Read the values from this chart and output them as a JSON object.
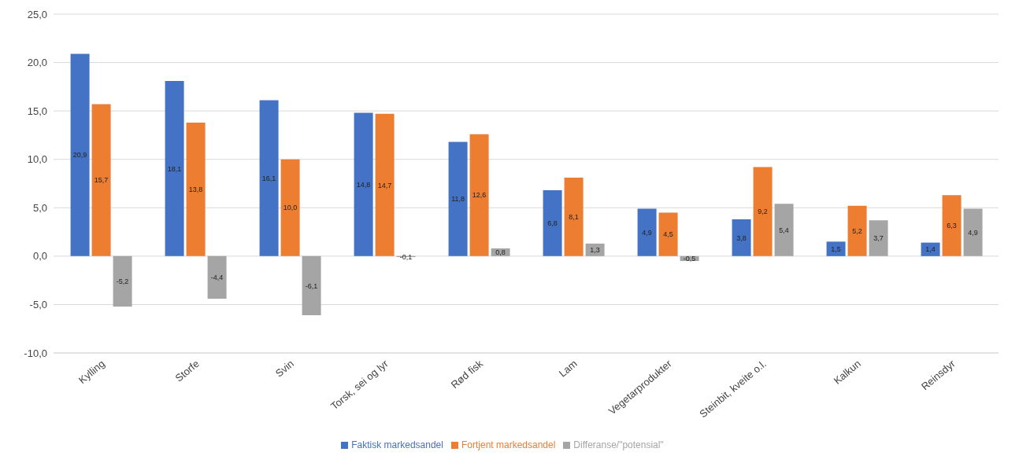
{
  "chart_data": {
    "type": "bar",
    "categories": [
      "Kylling",
      "Storfe",
      "Svin",
      "Torsk, sei og lyr",
      "Rød fisk",
      "Lam",
      "Vegetarprodukter",
      "Steinbit, kveite o.l.",
      "Kalkun",
      "Reinsdyr"
    ],
    "series": [
      {
        "name": "Faktisk markedsandel",
        "color": "#4472c4",
        "values": [
          20.9,
          18.1,
          16.1,
          14.8,
          11.8,
          6.8,
          4.9,
          3.8,
          1.5,
          1.4
        ],
        "value_labels": [
          "20,9",
          "18,1",
          "16,1",
          "14,8",
          "11,8",
          "6,8",
          "4,9",
          "3,8",
          "1,5",
          "1,4"
        ]
      },
      {
        "name": "Fortjent markedsandel",
        "color": "#ed7d31",
        "values": [
          15.7,
          13.8,
          10.0,
          14.7,
          12.6,
          8.1,
          4.5,
          9.2,
          5.2,
          6.3
        ],
        "value_labels": [
          "15,7",
          "13,8",
          "10,0",
          "14,7",
          "12,6",
          "8,1",
          "4,5",
          "9,2",
          "5,2",
          "6,3"
        ]
      },
      {
        "name": "Differanse/\"potensial\"",
        "color": "#a5a5a5",
        "values": [
          -5.2,
          -4.4,
          -6.1,
          -0.1,
          0.8,
          1.3,
          -0.5,
          5.4,
          3.7,
          4.9
        ],
        "value_labels": [
          "-5,2",
          "-4,4",
          "-6,1",
          "-0,1",
          "0,8",
          "1,3",
          "-0,5",
          "5,4",
          "3,7",
          "4,9"
        ]
      }
    ],
    "ylim": [
      -10,
      25
    ],
    "yticks": [
      {
        "value": -10,
        "label": "-10,0"
      },
      {
        "value": -5,
        "label": "-5,0"
      },
      {
        "value": 0,
        "label": "0,0"
      },
      {
        "value": 5,
        "label": "5,0"
      },
      {
        "value": 10,
        "label": "10,0"
      },
      {
        "value": 15,
        "label": "15,0"
      },
      {
        "value": 20,
        "label": "20,0"
      },
      {
        "value": 25,
        "label": "25,0"
      }
    ],
    "grid": "y",
    "legend": "bottom"
  }
}
